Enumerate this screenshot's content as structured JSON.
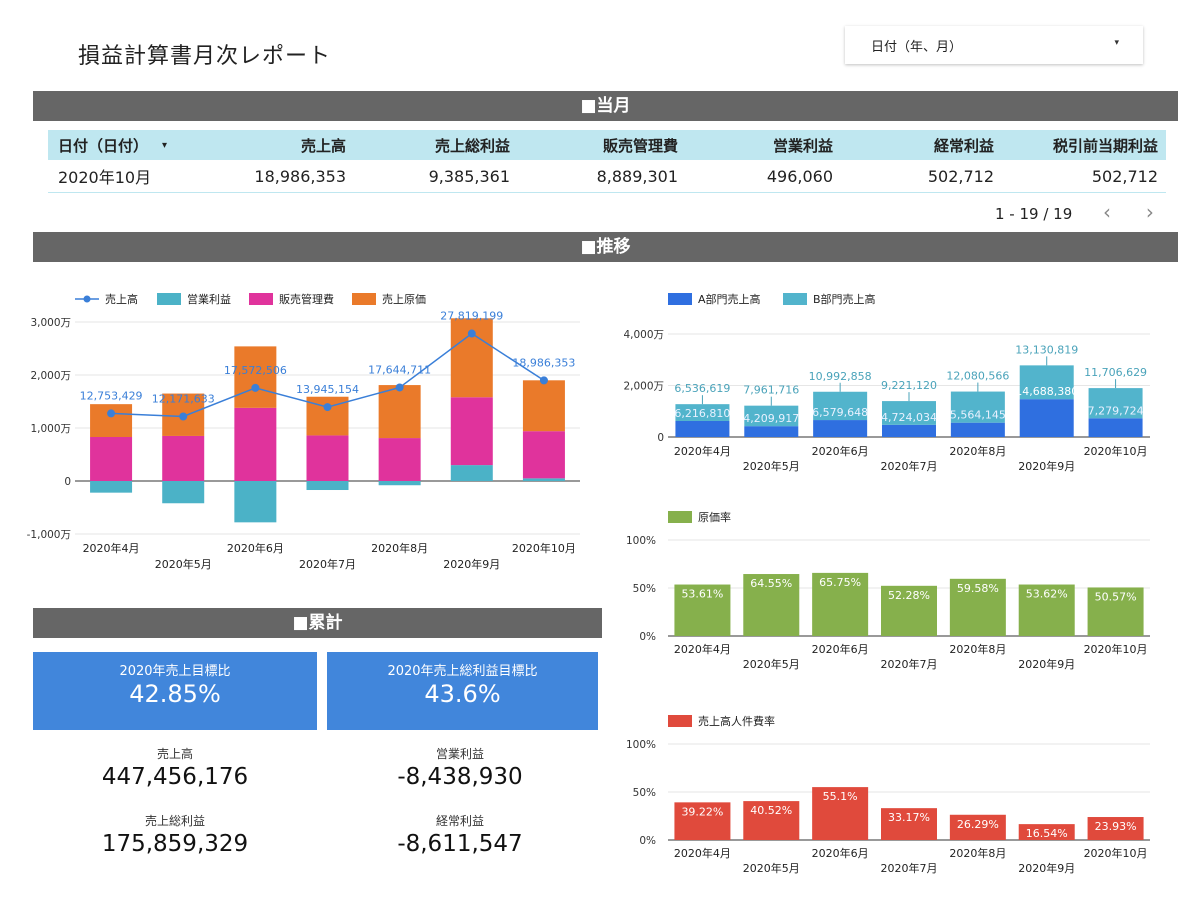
{
  "header": {
    "title": "損益計算書月次レポート",
    "date_filter_label": "日付（年、月）",
    "dropdown_caret": "▾"
  },
  "sections": {
    "current": "■当月",
    "trend": "■推移",
    "cumulative": "■累計"
  },
  "table": {
    "columns": [
      "日付（日付）",
      "売上高",
      "売上総利益",
      "販売管理費",
      "営業利益",
      "経常利益",
      "税引前当期利益"
    ],
    "sort_indicator": "▾",
    "rows": [
      [
        "2020年10月",
        "18,986,353",
        "9,385,361",
        "8,889,301",
        "496,060",
        "502,712",
        "502,712"
      ]
    ],
    "pagination": "1 - 19 / 19",
    "prev": "‹",
    "next": "›"
  },
  "kpis": [
    {
      "label": "2020年売上目標比",
      "value": "42.85%"
    },
    {
      "label": "2020年売上総利益目標比",
      "value": "43.6%"
    }
  ],
  "stats": [
    {
      "label": "売上高",
      "value": "447,456,176"
    },
    {
      "label": "営業利益",
      "value": "-8,438,930"
    },
    {
      "label": "売上総利益",
      "value": "175,859,329"
    },
    {
      "label": "経常利益",
      "value": "-8,611,547"
    }
  ],
  "colors": {
    "section_bar": "#666666",
    "table_header": "#bfe7f0",
    "kpi_bg": "#4186db",
    "operating_profit": "#4bb2c7",
    "sga": "#e0339c",
    "cogs": "#ea7a2a",
    "sales_line": "#3a7fd8",
    "dept_a": "#2f6fe0",
    "dept_b": "#52b4cc",
    "cost_rate": "#86b04c",
    "labor_rate": "#e04a3c"
  },
  "chart_data": [
    {
      "type": "bar",
      "stacked": true,
      "categories": [
        "2020年4月",
        "2020年5月",
        "2020年6月",
        "2020年7月",
        "2020年8月",
        "2020年9月",
        "2020年10月"
      ],
      "legend": [
        "売上高",
        "営業利益",
        "販売管理費",
        "売上原価"
      ],
      "series": [
        {
          "name": "営業利益",
          "values": [
            -220,
            -420,
            -780,
            -170,
            -80,
            300,
            50
          ]
        },
        {
          "name": "販売管理費",
          "values": [
            830,
            850,
            1380,
            860,
            810,
            1280,
            890
          ]
        },
        {
          "name": "売上原価",
          "values": [
            620,
            800,
            1160,
            730,
            1000,
            1490,
            960
          ]
        }
      ],
      "line": {
        "name": "売上高",
        "values": [
          1275.3429,
          1217.1633,
          1757.2506,
          1394.5154,
          1764.4711,
          2781.9199,
          1898.6353
        ],
        "labels": [
          "12,753,429",
          "12,171,633",
          "17,572,506",
          "13,945,154",
          "17,644,711",
          "27,819,199",
          "18,986,353"
        ]
      },
      "yticks": [
        "3,000万",
        "2,000万",
        "1,000万",
        "0",
        "-1,000万"
      ],
      "ylim": [
        -1000,
        3000
      ],
      "legend_position": "top-left",
      "grid": true
    },
    {
      "type": "bar",
      "stacked": true,
      "categories": [
        "2020年4月",
        "2020年5月",
        "2020年6月",
        "2020年7月",
        "2020年8月",
        "2020年9月",
        "2020年10月"
      ],
      "legend": [
        "A部門売上高",
        "B部門売上高"
      ],
      "series": [
        {
          "name": "A部門売上高",
          "values": [
            621.681,
            420.9917,
            657.9648,
            472.4034,
            556.4145,
            1468.838,
            727.9724
          ],
          "labels": [
            "6,216,810",
            "4,209,917",
            "6,579,648",
            "4,724,034",
            "5,564,145",
            "14,688,380",
            "7,279,724"
          ]
        },
        {
          "name": "B部門売上高",
          "values": [
            653.6619,
            796.1716,
            1099.2858,
            922.112,
            1208.0566,
            1313.0819,
            1170.6629
          ],
          "labels": [
            "6,536,619",
            "7,961,716",
            "10,992,858",
            "9,221,120",
            "12,080,566",
            "13,130,819",
            "11,706,629"
          ]
        }
      ],
      "yticks": [
        "4,000万",
        "2,000万",
        "0"
      ],
      "ylim": [
        0,
        4000
      ],
      "legend_position": "top-left",
      "grid": true
    },
    {
      "type": "bar",
      "categories": [
        "2020年4月",
        "2020年5月",
        "2020年6月",
        "2020年7月",
        "2020年8月",
        "2020年9月",
        "2020年10月"
      ],
      "legend": [
        "原価率"
      ],
      "values": [
        53.61,
        64.55,
        65.75,
        52.28,
        59.58,
        53.62,
        50.57
      ],
      "labels": [
        "53.61%",
        "64.55%",
        "65.75%",
        "52.28%",
        "59.58%",
        "53.62%",
        "50.57%"
      ],
      "yticks": [
        "100%",
        "50%",
        "0%"
      ],
      "ylim": [
        0,
        100
      ],
      "legend_position": "top-left",
      "grid": true
    },
    {
      "type": "bar",
      "categories": [
        "2020年4月",
        "2020年5月",
        "2020年6月",
        "2020年7月",
        "2020年8月",
        "2020年9月",
        "2020年10月"
      ],
      "legend": [
        "売上高人件費率"
      ],
      "values": [
        39.22,
        40.52,
        55.1,
        33.17,
        26.29,
        16.54,
        23.93
      ],
      "labels": [
        "39.22%",
        "40.52%",
        "55.1%",
        "33.17%",
        "26.29%",
        "16.54%",
        "23.93%"
      ],
      "yticks": [
        "100%",
        "50%",
        "0%"
      ],
      "ylim": [
        0,
        100
      ],
      "legend_position": "top-left",
      "grid": true
    }
  ]
}
